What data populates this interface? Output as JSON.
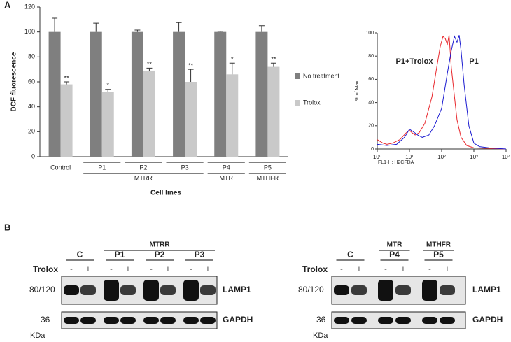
{
  "panel_labels": [
    "A",
    "B"
  ],
  "chart_data": [
    {
      "type": "bar",
      "categories": [
        "Control",
        "P1",
        "P2",
        "P3",
        "P4",
        "P5"
      ],
      "groups": [
        {
          "label": "MTRR",
          "categories": [
            "P1",
            "P2",
            "P3"
          ]
        },
        {
          "label": "MTR",
          "categories": [
            "P4"
          ]
        },
        {
          "label": "MTHFR",
          "categories": [
            "P5"
          ]
        }
      ],
      "series": [
        {
          "name": "No treatment",
          "color": "#7f7f7f",
          "values": [
            100,
            100,
            100,
            100,
            100,
            100
          ],
          "errors": [
            11,
            7,
            1.5,
            7.5,
            0.5,
            5
          ]
        },
        {
          "name": "Trolox",
          "color": "#c9c9c9",
          "values": [
            58,
            52,
            69,
            60,
            66,
            72
          ],
          "errors": [
            2,
            2,
            2,
            10,
            9,
            3
          ],
          "significance": [
            "**",
            "*",
            "**",
            "**",
            "*",
            "**"
          ]
        }
      ],
      "ylabel": "DCF fluorescence",
      "xlabel": "Cell lines",
      "ylim": [
        0,
        120
      ],
      "yticks": [
        0,
        20,
        40,
        60,
        80,
        100,
        120
      ]
    },
    {
      "type": "line",
      "log_x": true,
      "xlabel": "FL1-H: H2CFDA",
      "ylabel": "% of Max",
      "xlim": [
        1,
        10000
      ],
      "xticks": [
        {
          "value": 1,
          "label": "10⁰"
        },
        {
          "value": 10,
          "label": "10¹"
        },
        {
          "value": 100,
          "label": "10²"
        },
        {
          "value": 1000,
          "label": "10³"
        },
        {
          "value": 10000,
          "label": "10⁴"
        }
      ],
      "ylim": [
        0,
        100
      ],
      "yticks": [
        0,
        20,
        40,
        60,
        80,
        100
      ],
      "series": [
        {
          "name": "P1+Trolox",
          "color": "#e8262b",
          "x": [
            1,
            1.5,
            2,
            3,
            5,
            8,
            10,
            12,
            15,
            20,
            30,
            50,
            70,
            90,
            110,
            130,
            150,
            170,
            200,
            250,
            300,
            400,
            600,
            1000,
            10000
          ],
          "values": [
            8,
            5,
            4,
            5,
            8,
            14,
            16,
            14,
            12,
            14,
            22,
            45,
            70,
            88,
            97,
            95,
            90,
            98,
            70,
            45,
            25,
            10,
            3,
            1,
            0
          ]
        },
        {
          "name": "P1",
          "color": "#1a1ad0",
          "x": [
            1,
            2,
            4,
            7,
            10,
            13,
            18,
            25,
            40,
            60,
            100,
            150,
            200,
            250,
            300,
            350,
            400,
            500,
            700,
            1000,
            1500,
            3000,
            10000
          ],
          "values": [
            4,
            3,
            4,
            10,
            17,
            15,
            12,
            10,
            12,
            20,
            35,
            65,
            85,
            97,
            92,
            98,
            85,
            55,
            20,
            5,
            2,
            1,
            0
          ]
        }
      ]
    }
  ],
  "blots": [
    {
      "groups": [
        {
          "label": "MTRR",
          "lanes": [
            "P1",
            "P2",
            "P3"
          ]
        }
      ],
      "lanes": [
        "C",
        "P1",
        "P2",
        "P3"
      ],
      "treatment": "Trolox",
      "signs": [
        "-",
        "+",
        "-",
        "+",
        "-",
        "+",
        "-",
        "+"
      ],
      "weights": [
        "80/120",
        "36"
      ],
      "proteins": [
        "LAMP1",
        "GAPDH"
      ],
      "unit": "KDa"
    },
    {
      "groups": [
        {
          "label": "MTR",
          "lanes": [
            "P4"
          ]
        },
        {
          "label": "MTHFR",
          "lanes": [
            "P5"
          ]
        }
      ],
      "lanes": [
        "C",
        "P4",
        "P5"
      ],
      "treatment": "Trolox",
      "signs": [
        "-",
        "+",
        "-",
        "+",
        "-",
        "+"
      ],
      "weights": [
        "80/120",
        "36"
      ],
      "proteins": [
        "LAMP1",
        "GAPDH"
      ],
      "unit": "KDa"
    }
  ]
}
